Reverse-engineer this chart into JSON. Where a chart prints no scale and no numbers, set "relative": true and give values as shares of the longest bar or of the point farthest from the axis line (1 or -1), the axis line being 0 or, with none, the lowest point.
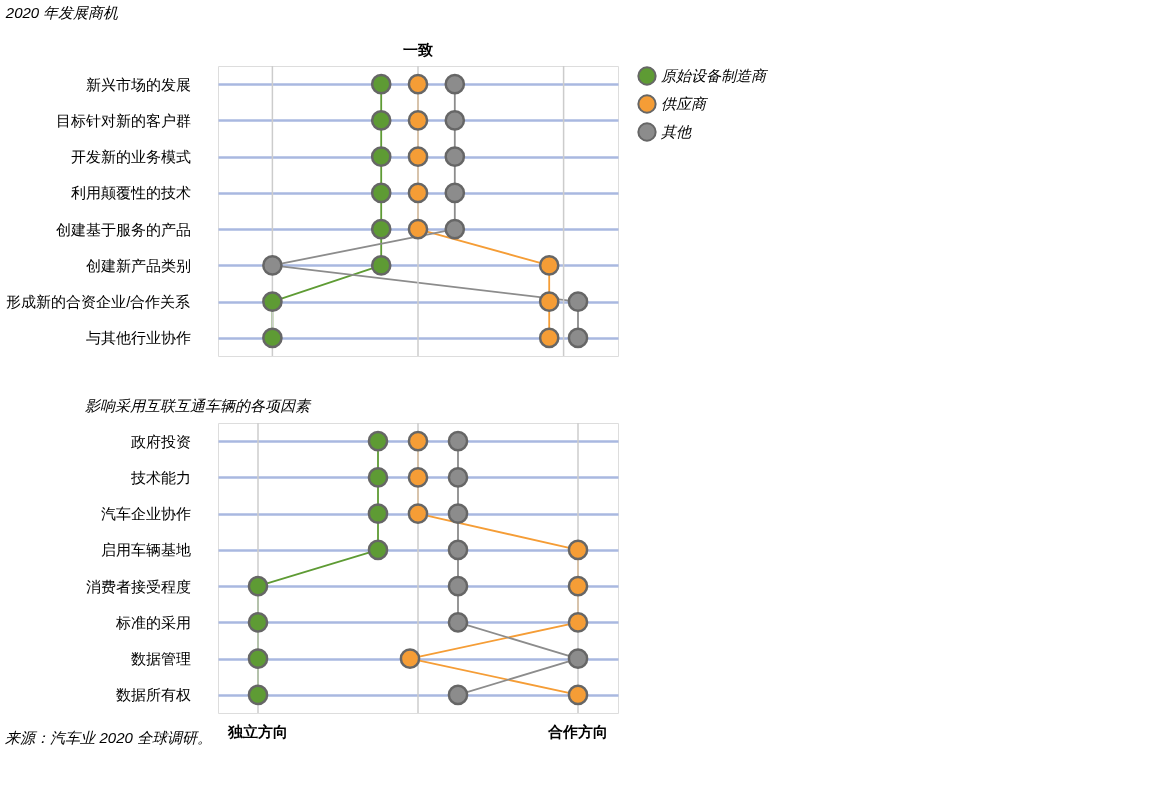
{
  "chart_data": [
    {
      "type": "line",
      "orientation": "horizontal",
      "relative": true,
      "title": "2020 年发展商机",
      "categories": [
        "新兴市场的发展",
        "目标针对新的客户群",
        "开发新的业务模式",
        "利用颠覆性的技术",
        "创建基于服务的产品",
        "创建新产品类别",
        "形成新的合资企业/合作关系",
        "与其他行业协作"
      ],
      "series": [
        {
          "name": "原始设备制造商",
          "color": "#5e9b34",
          "values": [
            -0.23,
            -0.23,
            -0.23,
            -0.23,
            -0.23,
            -0.23,
            -0.91,
            -0.91
          ]
        },
        {
          "name": "供应商",
          "color": "#f59d36",
          "values": [
            0,
            0,
            0,
            0,
            0,
            0.82,
            0.82,
            0.82
          ]
        },
        {
          "name": "其他",
          "color": "#8c8c8c",
          "values": [
            0.23,
            0.23,
            0.23,
            0.23,
            0.23,
            -0.91,
            1,
            1
          ]
        }
      ],
      "ref_lines": [
        {
          "axis": "x",
          "value": -0.91,
          "label": null
        },
        {
          "axis": "x",
          "value": 0,
          "label": "一致"
        },
        {
          "axis": "x",
          "value": 0.91,
          "label": null
        }
      ],
      "grid": "y",
      "legend": "top right",
      "marker": "circle",
      "line_style": "solid"
    },
    {
      "type": "line",
      "orientation": "horizontal",
      "relative": true,
      "title": "影响采用互联互通车辆的各项因素",
      "categories": [
        "政府投资",
        "技术能力",
        "汽车企业协作",
        "启用车辆基地",
        "消费者接受程度",
        "标准的采用",
        "数据管理",
        "数据所有权"
      ],
      "series": [
        {
          "name": "原始设备制造商",
          "color": "#5e9b34",
          "values": [
            -0.25,
            -0.25,
            -0.25,
            -0.25,
            -1,
            -1,
            -1,
            -1
          ]
        },
        {
          "name": "供应商",
          "color": "#f59d36",
          "values": [
            0,
            0,
            0,
            1,
            1,
            1,
            -0.05,
            1
          ]
        },
        {
          "name": "其他",
          "color": "#8c8c8c",
          "values": [
            0.25,
            0.25,
            0.25,
            0.25,
            0.25,
            0.25,
            1,
            0.25
          ]
        }
      ],
      "ref_lines": [
        {
          "axis": "x",
          "value": -1,
          "label": "独立方向"
        },
        {
          "axis": "x",
          "value": 0,
          "label": null
        },
        {
          "axis": "x",
          "value": 1,
          "label": "合作方向"
        }
      ],
      "grid": "y",
      "marker": "circle",
      "line_style": "solid",
      "annotations": [
        "来源：汽车业 2020 全球调研。"
      ]
    }
  ]
}
